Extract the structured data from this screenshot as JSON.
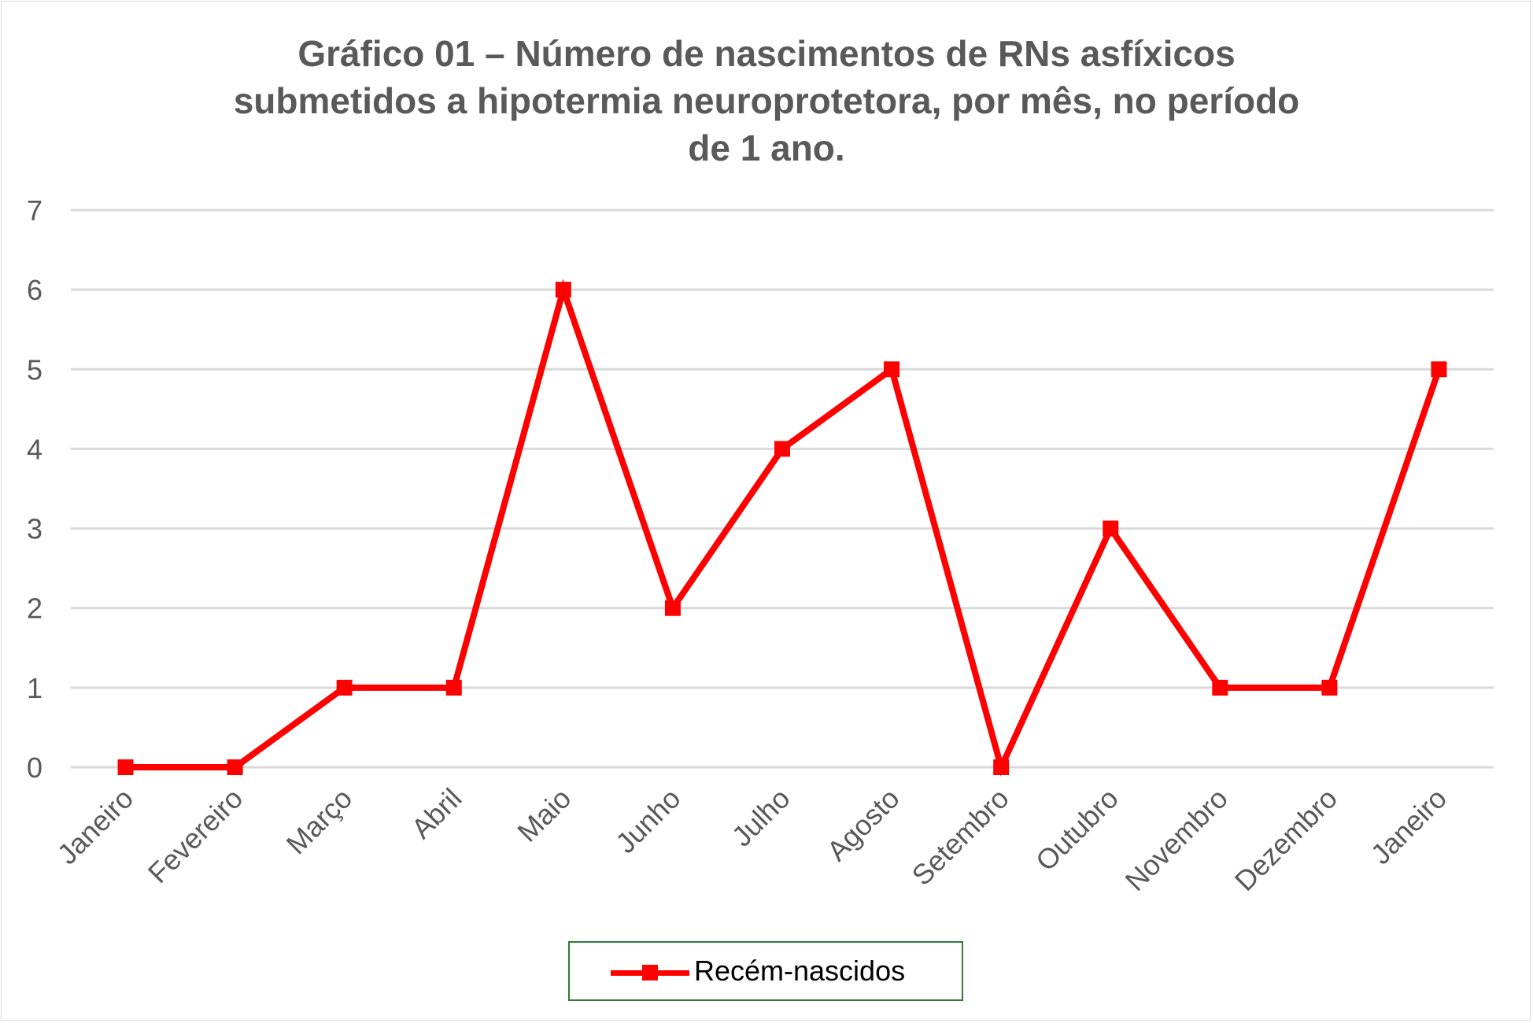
{
  "chart_data": {
    "type": "line",
    "title_lines": [
      "Gráfico 01 – Número de nascimentos de RNs asfíxicos",
      "submetidos a hipotermia neuroprotetora, por mês, no período",
      "de 1 ano."
    ],
    "categories": [
      "Janeiro",
      "Fevereiro",
      "Março",
      "Abril",
      "Maio",
      "Junho",
      "Julho",
      "Agosto",
      "Setembro",
      "Outubro",
      "Novembro",
      "Dezembro",
      "Janeiro"
    ],
    "series": [
      {
        "name": "Recém-nascidos",
        "values": [
          0,
          0,
          1,
          1,
          6,
          2,
          4,
          5,
          0,
          3,
          1,
          1,
          5
        ],
        "color": "#ff0000",
        "marker": "square"
      }
    ],
    "ylim": [
      0,
      7
    ],
    "yticks": [
      0,
      1,
      2,
      3,
      4,
      5,
      6,
      7
    ],
    "xlabel": "",
    "ylabel": "",
    "grid": true,
    "legend": "bottom",
    "colors": {
      "line": "#ff0000",
      "grid": "#d9d9d9",
      "text": "#595959",
      "legend_border": "#2e7d32"
    }
  }
}
